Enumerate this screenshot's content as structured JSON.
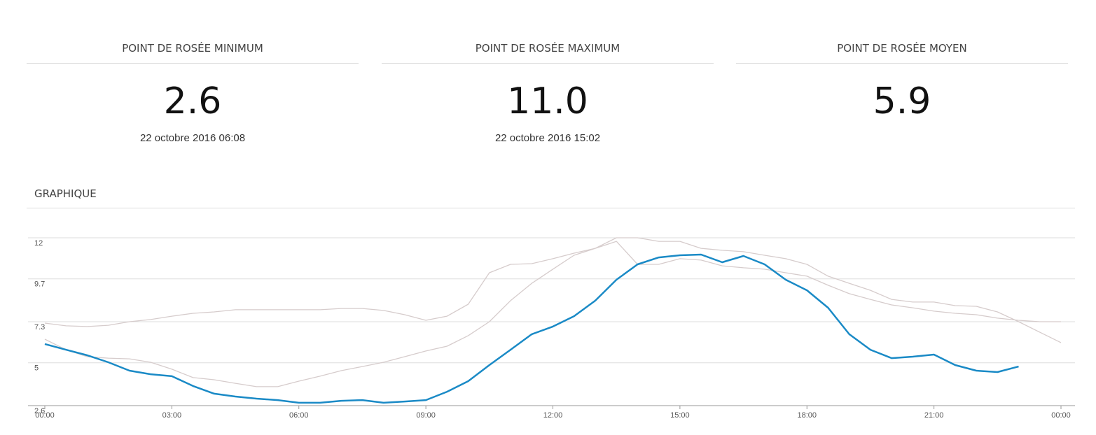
{
  "stats": [
    {
      "label": "POINT DE ROSÉE MINIMUM",
      "value": "2.6",
      "date": "22 octobre 2016 06:08"
    },
    {
      "label": "POINT DE ROSÉE MAXIMUM",
      "value": "11.0",
      "date": "22 octobre 2016 15:02"
    },
    {
      "label": "POINT DE ROSÉE MOYEN",
      "value": "5.9"
    }
  ],
  "section_title": "GRAPHIQUE",
  "chart_data": {
    "type": "line",
    "x": [
      0,
      0.5,
      1,
      1.5,
      2,
      2.5,
      3,
      3.5,
      4,
      4.5,
      5,
      5.5,
      6,
      6.5,
      7,
      7.5,
      8,
      8.5,
      9,
      9.5,
      10,
      10.5,
      11,
      11.5,
      12,
      12.5,
      13,
      13.5,
      14,
      14.5,
      15,
      15.5,
      16,
      16.5,
      17,
      17.5,
      18,
      18.5,
      19,
      19.5,
      20,
      20.5,
      21,
      21.5,
      22,
      22.5,
      23,
      23.5,
      24
    ],
    "xlim": [
      0,
      24
    ],
    "xticks": [
      {
        "value": 0,
        "label": "00:00"
      },
      {
        "value": 3,
        "label": "03:00"
      },
      {
        "value": 6,
        "label": "06:00"
      },
      {
        "value": 9,
        "label": "09:00"
      },
      {
        "value": 12,
        "label": "12:00"
      },
      {
        "value": 15,
        "label": "15:00"
      },
      {
        "value": 18,
        "label": "18:00"
      },
      {
        "value": 21,
        "label": "21:00"
      },
      {
        "value": 24,
        "label": "00:00"
      }
    ],
    "ylim": [
      2.6,
      12
    ],
    "yticks": [
      2.6,
      5,
      7.3,
      9.7,
      12
    ],
    "grid": true,
    "series": [
      {
        "color": "#d6cccc",
        "values": [
          7.22,
          7.07,
          7.03,
          7.1,
          7.3,
          7.42,
          7.61,
          7.77,
          7.85,
          7.97,
          7.97,
          7.97,
          7.97,
          7.97,
          8.04,
          8.04,
          7.93,
          7.69,
          7.38,
          7.61,
          8.28,
          10.04,
          10.51,
          10.55,
          10.83,
          11.14,
          11.41,
          12,
          12,
          11.8,
          11.8,
          11.41,
          11.3,
          11.22,
          11.02,
          10.83,
          10.51,
          9.85,
          9.45,
          9.06,
          8.55,
          8.4,
          8.4,
          8.2,
          8.16,
          7.85,
          7.3,
          6.71,
          6.13
        ]
      },
      {
        "color": "#d6cccc",
        "values": [
          6.32,
          5.73,
          5.34,
          5.26,
          5.22,
          5.03,
          4.64,
          4.17,
          4.05,
          3.85,
          3.66,
          3.66,
          3.97,
          4.25,
          4.56,
          4.79,
          5.03,
          5.34,
          5.66,
          5.93,
          6.52,
          7.3,
          8.48,
          9.45,
          10.24,
          11.02,
          11.41,
          11.8,
          10.51,
          10.51,
          10.83,
          10.75,
          10.43,
          10.32,
          10.24,
          10.04,
          9.85,
          9.34,
          8.87,
          8.55,
          8.24,
          8.08,
          7.89,
          7.77,
          7.69,
          7.5,
          7.38,
          7.3,
          7.3
        ]
      },
      {
        "color": "#1a8ac6",
        "values": [
          6.05,
          5.73,
          5.42,
          5.03,
          4.56,
          4.36,
          4.25,
          3.7,
          3.27,
          3.11,
          2.99,
          2.91,
          2.76,
          2.76,
          2.87,
          2.91,
          2.76,
          2.83,
          2.91,
          3.38,
          3.97,
          4.87,
          5.73,
          6.6,
          7.03,
          7.61,
          8.48,
          9.65,
          10.51,
          10.9,
          11.02,
          11.06,
          10.63,
          10.98,
          10.51,
          9.65,
          9.06,
          8.08,
          6.6,
          5.73,
          5.26,
          5.34,
          5.46,
          4.87,
          4.56,
          4.48,
          4.79,
          null,
          null
        ]
      }
    ]
  }
}
